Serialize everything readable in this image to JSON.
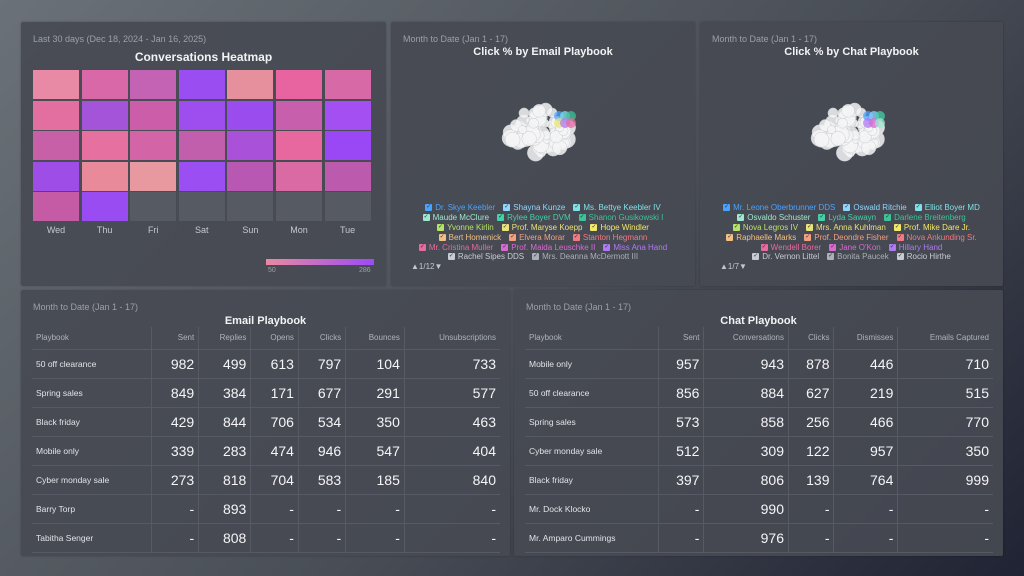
{
  "heatmap": {
    "subtitle": "Last 30 days (Dec 18, 2024 - Jan 16, 2025)",
    "title": "Conversations Heatmap",
    "days": [
      "Wed",
      "Thu",
      "Fri",
      "Sat",
      "Sun",
      "Mon",
      "Tue"
    ],
    "legend_min": "50",
    "legend_max": "286",
    "colors_hex": [
      [
        "#e889a6",
        "#d868a8",
        "#c462b4",
        "#9a4df0",
        "#e7909d",
        "#e764a0",
        "#d76aa6"
      ],
      [
        "#e36ea0",
        "#a454d8",
        "#cc5da8",
        "#9e4eef",
        "#9b4cef",
        "#c75fad",
        "#a34ff2"
      ],
      [
        "#c760a6",
        "#e6709f",
        "#d364a6",
        "#c25fac",
        "#a951d8",
        "#e6689e",
        "#9a48f6"
      ],
      [
        "#9e4ee6",
        "#e88a9a",
        "#e899a0",
        "#9b4ff2",
        "#b958b3",
        "#d96aa4",
        "#bc5aae"
      ],
      [
        "#c45ba4",
        "#9a4cf3",
        null,
        null,
        null,
        null,
        null
      ]
    ]
  },
  "email_bubble": {
    "subtitle": "Month to Date (Jan 1 - 17)",
    "title": "Click % by Email Playbook",
    "legend_rows": [
      [
        {
          "label": "Dr. Skye Keebler",
          "color": "#4aa3ff"
        },
        {
          "label": "Shayna Kunze",
          "color": "#8fd6ff"
        },
        {
          "label": "Ms. Bettye Keebler IV",
          "color": "#7fe0e8"
        }
      ],
      [
        {
          "label": "Maude McClure",
          "color": "#9fe7d0"
        },
        {
          "label": "Rylee Boyer DVM",
          "color": "#45d0a8"
        },
        {
          "label": "Shanon Gusikowski I",
          "color": "#3cc39a"
        }
      ],
      [
        {
          "label": "Yvonne Kirlin",
          "color": "#b6e36a"
        },
        {
          "label": "Prof. Maryse Koepp",
          "color": "#e9e37a"
        },
        {
          "label": "Hope Windler",
          "color": "#f2e86a"
        }
      ],
      [
        {
          "label": "Bert Homenick",
          "color": "#f2c084"
        },
        {
          "label": "Elvera Morar",
          "color": "#f2a080"
        },
        {
          "label": "Stanton Hegmann",
          "color": "#f27a82"
        }
      ],
      [
        {
          "label": "Mr. Cristina Muller",
          "color": "#e86aa0"
        },
        {
          "label": "Prof. Maida Leuschke II",
          "color": "#d86ad2"
        },
        {
          "label": "Miss Ana Hand",
          "color": "#b07af2"
        }
      ],
      [
        {
          "label": "Rachel Sipes DDS",
          "color": "#c8ccd2"
        },
        {
          "label": "Mrs. Deanna McDermott III",
          "color": "#aab0b8"
        }
      ]
    ],
    "pager": "1/12"
  },
  "chat_bubble": {
    "subtitle": "Month to Date (Jan 1 - 17)",
    "title": "Click % by Chat Playbook",
    "legend_rows": [
      [
        {
          "label": "Mr. Leone Oberbrunner DDS",
          "color": "#4aa3ff"
        },
        {
          "label": "Oswald Ritchie",
          "color": "#8fd6ff"
        },
        {
          "label": "Elliot Boyer MD",
          "color": "#7fe0e8"
        }
      ],
      [
        {
          "label": "Osvaldo Schuster",
          "color": "#9fe7d0"
        },
        {
          "label": "Lyda Sawayn",
          "color": "#45d0a8"
        },
        {
          "label": "Darlene Breitenberg",
          "color": "#3cc39a"
        }
      ],
      [
        {
          "label": "Nova Legros IV",
          "color": "#b6e36a"
        },
        {
          "label": "Mrs. Anna Kuhlman",
          "color": "#e9e37a"
        },
        {
          "label": "Prof. Mike Dare Jr.",
          "color": "#f2e86a"
        }
      ],
      [
        {
          "label": "Raphaelle Marks",
          "color": "#f2c084"
        },
        {
          "label": "Prof. Deondre Fisher",
          "color": "#f2a080"
        },
        {
          "label": "Nova Ankunding Sr.",
          "color": "#f27a82"
        }
      ],
      [
        {
          "label": "Wendell Borer",
          "color": "#e86aa0"
        },
        {
          "label": "Jane O'Kon",
          "color": "#d86ad2"
        },
        {
          "label": "Hillary Hand",
          "color": "#b07af2"
        }
      ],
      [
        {
          "label": "Dr. Vernon Littel",
          "color": "#c8ccd2"
        },
        {
          "label": "Bonita Paucek",
          "color": "#aab0b8"
        },
        {
          "label": "Rocio Hirthe",
          "color": "#c8ccd2"
        }
      ]
    ],
    "pager": "1/7"
  },
  "email_table": {
    "subtitle": "Month to Date (Jan 1 - 17)",
    "title": "Email Playbook",
    "columns": [
      "Playbook",
      "Sent",
      "Replies",
      "Opens",
      "Clicks",
      "Bounces",
      "Unsubscriptions"
    ],
    "rows": [
      [
        "50 off clearance",
        "982",
        "499",
        "613",
        "797",
        "104",
        "733"
      ],
      [
        "Spring sales",
        "849",
        "384",
        "171",
        "677",
        "291",
        "577"
      ],
      [
        "Black friday",
        "429",
        "844",
        "706",
        "534",
        "350",
        "463"
      ],
      [
        "Mobile only",
        "339",
        "283",
        "474",
        "946",
        "547",
        "404"
      ],
      [
        "Cyber monday sale",
        "273",
        "818",
        "704",
        "583",
        "185",
        "840"
      ],
      [
        "Barry Torp",
        "-",
        "893",
        "-",
        "-",
        "-",
        "-"
      ],
      [
        "Tabitha Senger",
        "-",
        "808",
        "-",
        "-",
        "-",
        "-"
      ]
    ]
  },
  "chat_table": {
    "subtitle": "Month to Date (Jan 1 - 17)",
    "title": "Chat Playbook",
    "columns": [
      "Playbook",
      "Sent",
      "Conversations",
      "Clicks",
      "Dismisses",
      "Emails Captured"
    ],
    "rows": [
      [
        "Mobile only",
        "957",
        "943",
        "878",
        "446",
        "710"
      ],
      [
        "50 off clearance",
        "856",
        "884",
        "627",
        "219",
        "515"
      ],
      [
        "Spring sales",
        "573",
        "858",
        "256",
        "466",
        "770"
      ],
      [
        "Cyber monday sale",
        "512",
        "309",
        "122",
        "957",
        "350"
      ],
      [
        "Black friday",
        "397",
        "806",
        "139",
        "764",
        "999"
      ],
      [
        "Mr. Dock Klocko",
        "-",
        "990",
        "-",
        "-",
        "-"
      ],
      [
        "Mr. Amparo Cummings",
        "-",
        "976",
        "-",
        "-",
        "-"
      ]
    ]
  }
}
